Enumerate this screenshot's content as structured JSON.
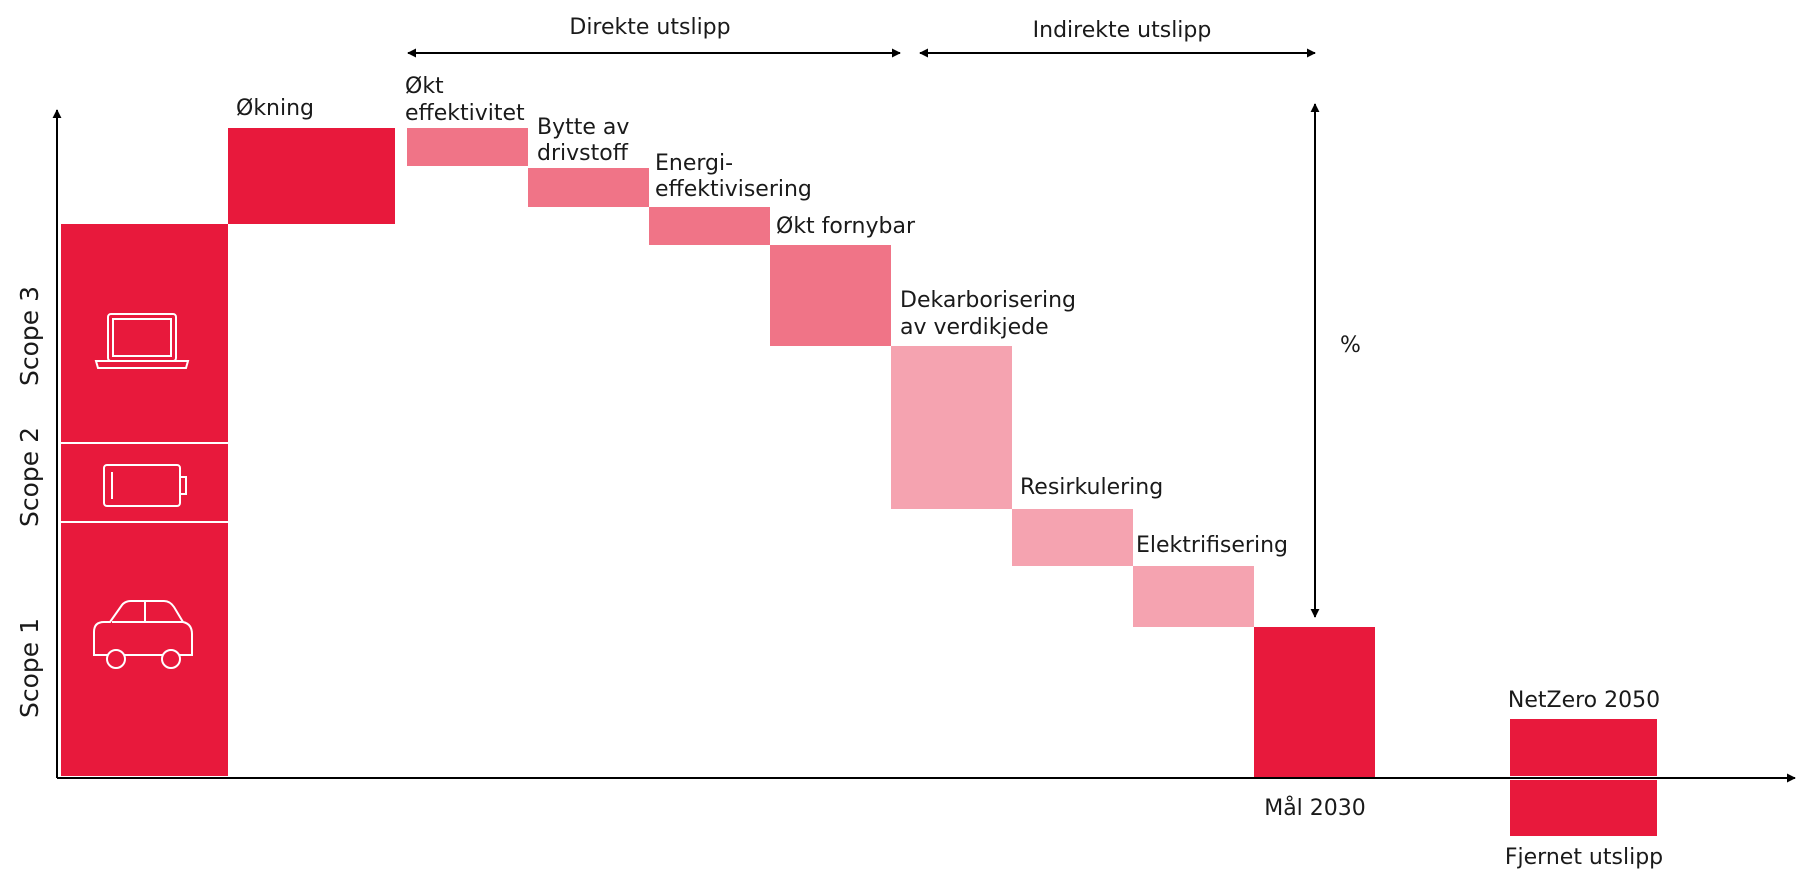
{
  "colors": {
    "primary": "#E8193C",
    "medium": "#F07487",
    "light": "#F5A3B0",
    "axis": "#000000"
  },
  "headers": {
    "direct": "Direkte utslipp",
    "indirect": "Indirekte utslipp"
  },
  "scopes": {
    "scope3": "Scope 3",
    "scope2": "Scope 2",
    "scope1": "Scope 1"
  },
  "icons": {
    "scope3": "laptop-icon",
    "scope2": "battery-icon",
    "scope1": "car-icon"
  },
  "labels": {
    "increase": "Økning",
    "efficiency_1": "Økt",
    "efficiency_2": "effektivitet",
    "fuel_1": "Bytte av",
    "fuel_2": "drivstoff",
    "energy_1": "Energi-",
    "energy_2": "effektivisering",
    "renewable": "Økt fornybar",
    "decarb_1": "Dekarborisering",
    "decarb_2": "av verdikjede",
    "recycling": "Resirkulering",
    "electrification": "Elektrifisering",
    "percent": "%",
    "goal_2030": "Mål 2030",
    "netzero": "NetZero 2050",
    "removed": "Fjernet utslipp"
  }
}
